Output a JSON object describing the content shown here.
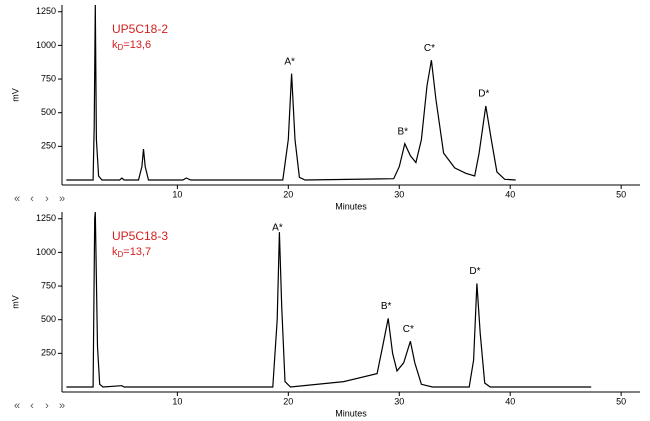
{
  "chart_data": [
    {
      "type": "line",
      "title": "UP5C18-2",
      "subtitle_parts": [
        "k",
        "D",
        "=13,6"
      ],
      "xlabel": "Minutes",
      "ylabel": "mV",
      "color": "#000000",
      "xlim": [
        -0.4,
        51.7
      ],
      "xticks": [
        10,
        20,
        30,
        40,
        50
      ],
      "ylim": [
        -37,
        1300
      ],
      "yticks": [
        250,
        500,
        750,
        1000,
        1250
      ],
      "x": [
        0,
        2.4,
        2.5,
        2.6,
        2.7,
        2.9,
        3.2,
        4.8,
        5,
        5.2,
        6.5,
        6.8,
        6.95,
        7.1,
        7.4,
        10.5,
        10.8,
        11.2,
        19.5,
        20,
        20.3,
        20.6,
        21,
        21.5,
        29.5,
        30,
        30.5,
        31,
        31.5,
        32,
        32.5,
        32.9,
        33.3,
        34,
        35,
        36,
        36.8,
        37.2,
        37.8,
        38.3,
        38.8,
        39.5,
        40.5
      ],
      "values": [
        0,
        0,
        400,
        1300,
        300,
        30,
        0,
        0,
        15,
        0,
        0,
        100,
        230,
        100,
        0,
        0,
        15,
        0,
        0,
        300,
        790,
        300,
        20,
        0,
        10,
        100,
        270,
        180,
        130,
        300,
        700,
        890,
        600,
        200,
        90,
        50,
        30,
        200,
        550,
        300,
        60,
        5,
        0
      ],
      "annotations": [
        "A*",
        "B*",
        "C*",
        "D*"
      ],
      "nav_controls": [
        "«",
        "‹",
        "›",
        "»"
      ]
    },
    {
      "type": "line",
      "title": "UP5C18-3",
      "subtitle_parts": [
        "k",
        "D",
        "=13,7"
      ],
      "xlabel": "Minutes",
      "ylabel": "mV",
      "color": "#000000",
      "xlim": [
        -0.4,
        51.7
      ],
      "xticks": [
        10,
        20,
        30,
        40,
        50
      ],
      "ylim": [
        -37,
        1300
      ],
      "yticks": [
        250,
        500,
        750,
        1000,
        1250
      ],
      "x": [
        0,
        2.4,
        2.55,
        2.6,
        2.8,
        3,
        3.3,
        5,
        5.2,
        18.6,
        19,
        19.2,
        19.4,
        19.7,
        20.2,
        25,
        28,
        28.5,
        29,
        29.4,
        29.8,
        30.4,
        31,
        31.4,
        32,
        33,
        36.3,
        36.7,
        37,
        37.3,
        37.7,
        38.2,
        47.3
      ],
      "values": [
        0,
        0,
        1250,
        1300,
        300,
        20,
        0,
        10,
        0,
        0,
        500,
        1150,
        600,
        40,
        0,
        40,
        100,
        300,
        510,
        250,
        120,
        180,
        340,
        180,
        20,
        0,
        0,
        200,
        770,
        400,
        30,
        0,
        0
      ],
      "annotations": [
        "A*",
        "B*",
        "C*",
        "D*"
      ],
      "nav_controls": [
        "«",
        "‹",
        "›",
        "»"
      ]
    }
  ]
}
